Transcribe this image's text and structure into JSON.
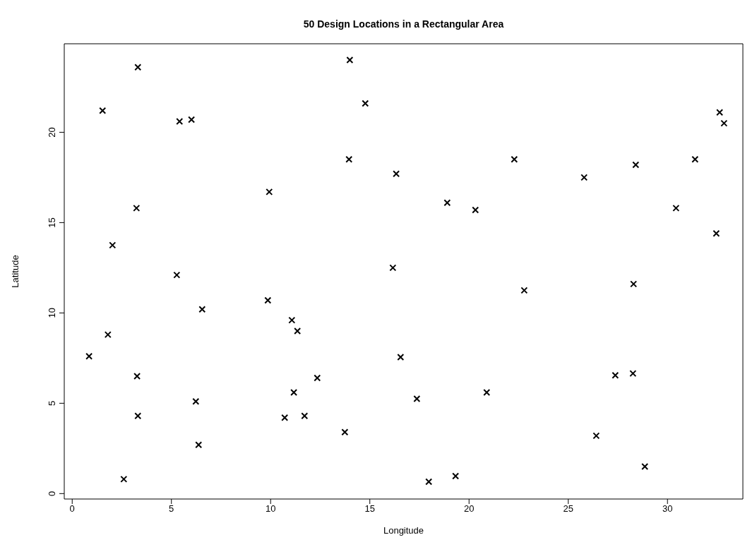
{
  "chart_data": {
    "type": "scatter",
    "title": "50 Design Locations in a Rectangular Area",
    "xlabel": "Longitude",
    "ylabel": "Latitude",
    "x": [
      0.85,
      1.8,
      2.03,
      3.31,
      1.53,
      5.41,
      6.01,
      3.24,
      9.93,
      5.27,
      13.99,
      14.77,
      13.95,
      9.86,
      6.55,
      11.07,
      11.35,
      3.27,
      12.35,
      11.17,
      6.23,
      3.31,
      10.71,
      11.71,
      13.74,
      6.37,
      2.6,
      32.63,
      32.85,
      22.28,
      28.4,
      31.39,
      16.33,
      25.8,
      18.9,
      20.32,
      30.43,
      32.46,
      16.16,
      22.78,
      28.29,
      16.55,
      27.37,
      28.26,
      20.89,
      17.37,
      26.41,
      28.86,
      19.32,
      17.97
    ],
    "values": [
      7.6,
      8.8,
      13.75,
      23.6,
      21.2,
      20.6,
      20.7,
      15.8,
      16.7,
      12.1,
      24.0,
      21.6,
      18.5,
      10.7,
      10.2,
      9.6,
      9.0,
      6.5,
      6.4,
      5.6,
      5.1,
      4.3,
      4.2,
      4.3,
      3.4,
      2.7,
      0.8,
      21.1,
      20.5,
      18.5,
      18.2,
      18.5,
      17.7,
      17.5,
      16.1,
      15.7,
      15.8,
      14.4,
      12.5,
      11.25,
      11.6,
      7.55,
      6.55,
      6.65,
      5.6,
      5.25,
      3.2,
      1.5,
      0.97,
      0.66
    ],
    "color": "#000000",
    "marker": "cross",
    "xlim": [
      -0.4,
      33.8
    ],
    "xticks": [
      0,
      5,
      10,
      15,
      20,
      25,
      30
    ],
    "ylim": [
      -0.3,
      24.9
    ],
    "yticks": [
      0,
      5,
      10,
      15,
      20
    ],
    "grid": false
  }
}
